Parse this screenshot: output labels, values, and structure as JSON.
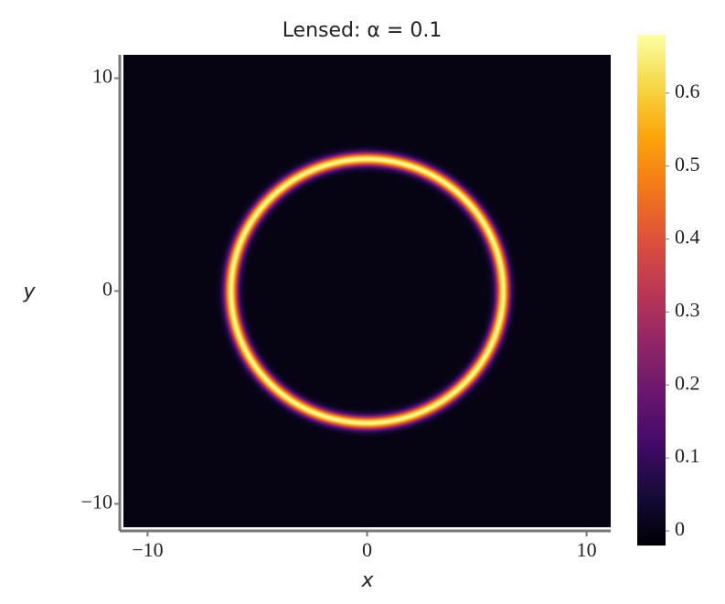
{
  "chart_data": {
    "type": "heatmap",
    "title": "Lensed: α = 0.1",
    "xlabel": "x",
    "ylabel": "y",
    "xlim": [
      -11.1,
      11.1
    ],
    "ylim": [
      -11.1,
      11.1
    ],
    "xticks": [
      {
        "value": -10,
        "label": "−10"
      },
      0,
      10
    ],
    "yticks": [
      {
        "value": -10,
        "label": "−10"
      },
      0,
      10
    ],
    "colormap": "inferno",
    "clim": [
      -0.02,
      0.68
    ],
    "cticks": [
      0,
      0.1,
      0.2,
      0.3,
      0.4,
      0.5,
      0.6
    ],
    "shapes": [
      {
        "type": "ring",
        "cx": 0,
        "cy": 0,
        "r": 6.2,
        "width": 0.6,
        "value": 0.67
      }
    ]
  }
}
